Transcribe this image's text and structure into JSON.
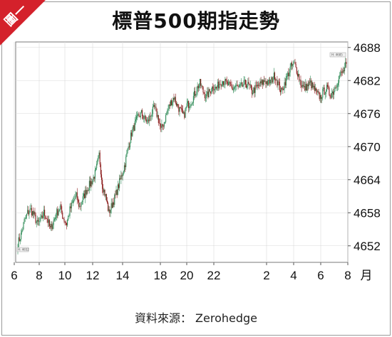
{
  "badge": "圖一",
  "title": "標普500期指走勢",
  "source": "資料來源： Zerohedge",
  "colors": {
    "up": "#2e8b57",
    "down": "#8b1a1a",
    "badge": "#d4212b",
    "grid": "#d9d9d9"
  },
  "chart_data": {
    "type": "line",
    "style": "candlestick",
    "title": "標普500期指走勢",
    "xlabel": "月",
    "ylabel": "",
    "ylim": [
      4649,
      4689
    ],
    "yticks": [
      4652,
      4658,
      4664,
      4670,
      4676,
      4682,
      4688
    ],
    "xticks": [
      "6",
      "8",
      "10",
      "12",
      "14",
      "18",
      "20",
      "22",
      "2",
      "4",
      "6",
      "8"
    ],
    "x_unit_label": "月",
    "grid": true,
    "first_value_tag": "H: 4652",
    "last_value_tag": "H: 4685",
    "series": [
      {
        "values": [
          4652.5,
          4654.0,
          4656.5,
          4658.0,
          4658.5,
          4657.5,
          4656.0,
          4656.5,
          4658.0,
          4657.0,
          4655.0,
          4656.5,
          4658.0,
          4659.0,
          4657.0,
          4656.0,
          4658.5,
          4660.0,
          4661.0,
          4659.0,
          4660.5,
          4662.0,
          4663.0,
          4664.0,
          4665.5,
          4668.5,
          4663.0,
          4661.0,
          4658.0,
          4659.5,
          4661.0,
          4663.0,
          4665.0,
          4667.0,
          4670.0,
          4672.5,
          4674.0,
          4675.5,
          4676.0,
          4675.0,
          4674.5,
          4676.0,
          4677.0,
          4675.5,
          4673.0,
          4674.5,
          4676.5,
          4678.0,
          4679.0,
          4677.5,
          4676.5,
          4675.5,
          4677.5,
          4678.0,
          4679.0,
          4680.5,
          4681.5,
          4680.0,
          4679.0,
          4680.0,
          4681.0,
          4680.5,
          4681.5,
          4682.0,
          4681.5,
          4681.0,
          4680.5,
          4681.0,
          4680.5,
          4681.0,
          4681.5,
          4681.0,
          4680.0,
          4680.5,
          4681.0,
          4681.5,
          4682.0,
          4681.5,
          4682.0,
          4683.0,
          4681.5,
          4680.0,
          4681.5,
          4683.0,
          4684.5,
          4685.0,
          4683.5,
          4681.5,
          4680.5,
          4681.0,
          4681.5,
          4680.5,
          4679.5,
          4679.0,
          4680.0,
          4680.5,
          4679.5,
          4680.0,
          4681.5,
          4683.0,
          4683.5,
          4685.0
        ]
      }
    ]
  }
}
